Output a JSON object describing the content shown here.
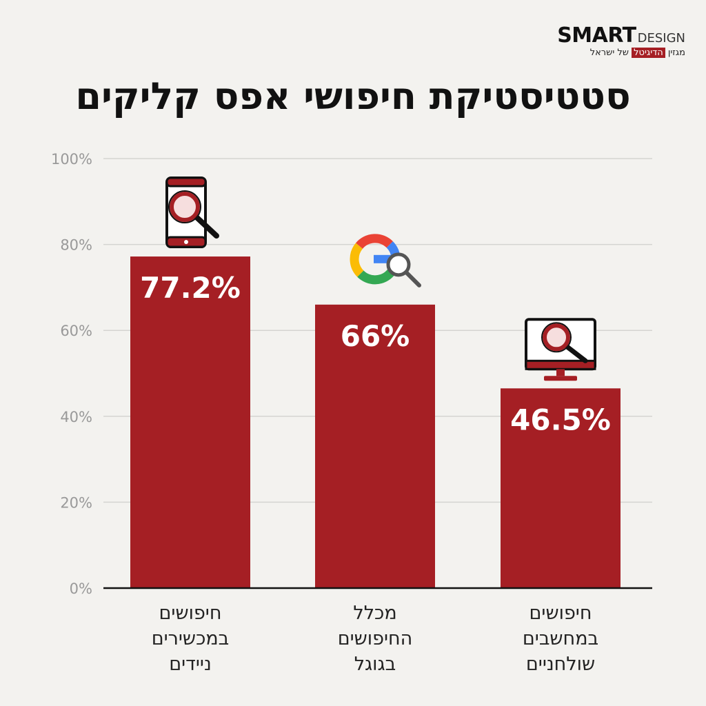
{
  "brand": {
    "main": "SMART",
    "sub": "DESIGN",
    "tagline_pre": "מגזין",
    "tagline_highlight": "הדיגיטל",
    "tagline_post": "של ישראל"
  },
  "colors": {
    "bar": "#a51f24",
    "background": "#f3f2ef"
  },
  "chart_data": {
    "type": "bar",
    "title": "סטטיסטיקת חיפושי אפס קליקים",
    "categories": [
      "חיפושים במכשירים ניידים",
      "מכלל החיפושים בגוגל",
      "חיפושים במחשבים שולחניים"
    ],
    "category_lines": [
      [
        "חיפושים",
        "במכשירים",
        "ניידים"
      ],
      [
        "מכלל",
        "החיפושים",
        "בגוגל"
      ],
      [
        "חיפושים",
        "במחשבים",
        "שולחניים"
      ]
    ],
    "values": [
      77.2,
      66,
      46.5
    ],
    "value_labels": [
      "77.2%",
      "66%",
      "46.5%"
    ],
    "icons": [
      "phone-search-icon",
      "google-search-icon",
      "desktop-search-icon"
    ],
    "yticks": [
      "0%",
      "20%",
      "40%",
      "60%",
      "80%",
      "100%"
    ],
    "ylim": [
      0,
      100
    ],
    "grid": true
  }
}
